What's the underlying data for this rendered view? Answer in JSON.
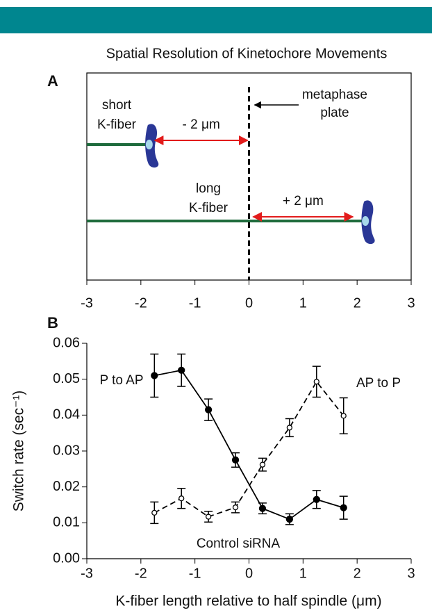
{
  "chart_data": [
    {
      "type": "schematic",
      "panel_label": "A",
      "title": "Spatial Resolution of Kinetochore Movements",
      "xlim": [
        -3,
        3
      ],
      "xticks": [
        -3,
        -2,
        -1,
        0,
        1,
        2,
        3
      ],
      "plate_x": 0,
      "plate_label": [
        "metaphase",
        "plate"
      ],
      "fibers": [
        {
          "name": [
            "short",
            "K-fiber"
          ],
          "end": -2,
          "label": "- 2 μm"
        },
        {
          "name": [
            "long",
            "K-fiber"
          ],
          "end": 2,
          "label": "+ 2 μm"
        }
      ],
      "colors": {
        "fiber": "#1e6b3c",
        "kinetochore": "#2a3796",
        "arrow": "#e21b1b"
      }
    },
    {
      "type": "line",
      "panel_label": "B",
      "x": [
        -1.75,
        -1.25,
        -0.75,
        -0.25,
        0.25,
        0.75,
        1.25,
        1.75
      ],
      "series": [
        {
          "name": "P to AP",
          "color": "#000000",
          "style": "solid",
          "marker": "filled",
          "values": [
            0.051,
            0.0525,
            0.0415,
            0.0275,
            0.014,
            0.011,
            0.0165,
            0.0142
          ],
          "errors": [
            0.006,
            0.0045,
            0.003,
            0.002,
            0.0015,
            0.0015,
            0.0025,
            0.0032
          ]
        },
        {
          "name": "AP to P",
          "color": "#000000",
          "style": "dashed",
          "marker": "open",
          "values": [
            0.0128,
            0.0168,
            0.0117,
            0.0143,
            0.0262,
            0.0365,
            0.0493,
            0.0398
          ],
          "errors": [
            0.003,
            0.0028,
            0.0015,
            0.0015,
            0.0018,
            0.0025,
            0.0043,
            0.005
          ]
        }
      ],
      "annotation": "Control siRNA",
      "xlim": [
        -3,
        3
      ],
      "xticks": [
        -3,
        -2,
        -1,
        0,
        1,
        2,
        3
      ],
      "ylim": [
        0,
        0.06
      ],
      "yticks": [
        {
          "value": 0,
          "label": "0.00"
        },
        0.01,
        0.02,
        0.03,
        0.04,
        0.05,
        0.06
      ],
      "xlabel": "K-fiber length relative to half spindle (μm)",
      "ylabel": "Switch rate (sec⁻¹)"
    }
  ]
}
